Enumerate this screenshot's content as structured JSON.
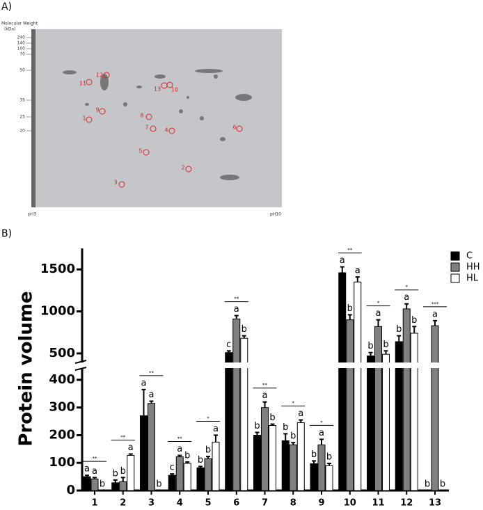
{
  "panel_a": {
    "label": "A)",
    "gel": {
      "mw_title": "Molecular Weight",
      "mw_unit": "(kDa)",
      "mw_markers": [
        240,
        140,
        100,
        70,
        50,
        35,
        25,
        20
      ],
      "ph_left": "pH3",
      "ph_right": "pH10",
      "spots": [
        "1",
        "2",
        "3",
        "4",
        "5",
        "6",
        "7",
        "8",
        "9",
        "10",
        "11",
        "12",
        "13"
      ]
    }
  },
  "panel_b_label": "B)",
  "chart_data": {
    "type": "bar",
    "y_label": "Protein volume",
    "categories": [
      "1",
      "2",
      "3",
      "4",
      "5",
      "6",
      "7",
      "8",
      "9",
      "10",
      "11",
      "12",
      "13"
    ],
    "series": [
      {
        "name": "C",
        "color": "#000000",
        "values": [
          50,
          28,
          270,
          55,
          82,
          510,
          200,
          180,
          97,
          1460,
          470,
          640,
          0
        ],
        "errors": [
          5,
          10,
          95,
          5,
          5,
          20,
          10,
          25,
          10,
          70,
          40,
          70,
          0
        ],
        "letters": [
          "a",
          "b",
          "a",
          "c",
          "b",
          "c",
          "b",
          "b",
          "b",
          "a",
          "b",
          "b",
          "b"
        ]
      },
      {
        "name": "HH",
        "color": "#808080",
        "values": [
          42,
          32,
          315,
          122,
          115,
          910,
          300,
          165,
          165,
          900,
          820,
          1030,
          830
        ],
        "errors": [
          5,
          15,
          8,
          5,
          8,
          40,
          20,
          8,
          20,
          60,
          80,
          60,
          60
        ],
        "letters": [
          "a",
          "b",
          "a",
          "a",
          "b",
          "a",
          "a",
          "b",
          "a",
          "b",
          "a",
          "a",
          "a"
        ]
      },
      {
        "name": "HL",
        "color": "#ffffff",
        "values": [
          0,
          127,
          0,
          98,
          175,
          680,
          235,
          245,
          90,
          1350,
          490,
          740,
          0
        ],
        "errors": [
          0,
          5,
          0,
          5,
          25,
          30,
          5,
          10,
          8,
          60,
          40,
          80,
          0
        ],
        "letters": [
          "b",
          "a",
          "b",
          "b",
          "a",
          "b",
          "b",
          "a",
          "b",
          "a",
          "b",
          "b",
          "b"
        ]
      }
    ],
    "significance": [
      "**",
      "**",
      "**",
      "**",
      "*",
      "**",
      "**",
      "*",
      "*",
      "**",
      "*",
      "*",
      "***"
    ],
    "y_segments": [
      [
        0,
        440
      ],
      [
        400,
        1750
      ]
    ],
    "yticks": [
      0,
      100,
      200,
      300,
      400,
      500,
      1000,
      1500
    ],
    "legend": "top-right"
  }
}
